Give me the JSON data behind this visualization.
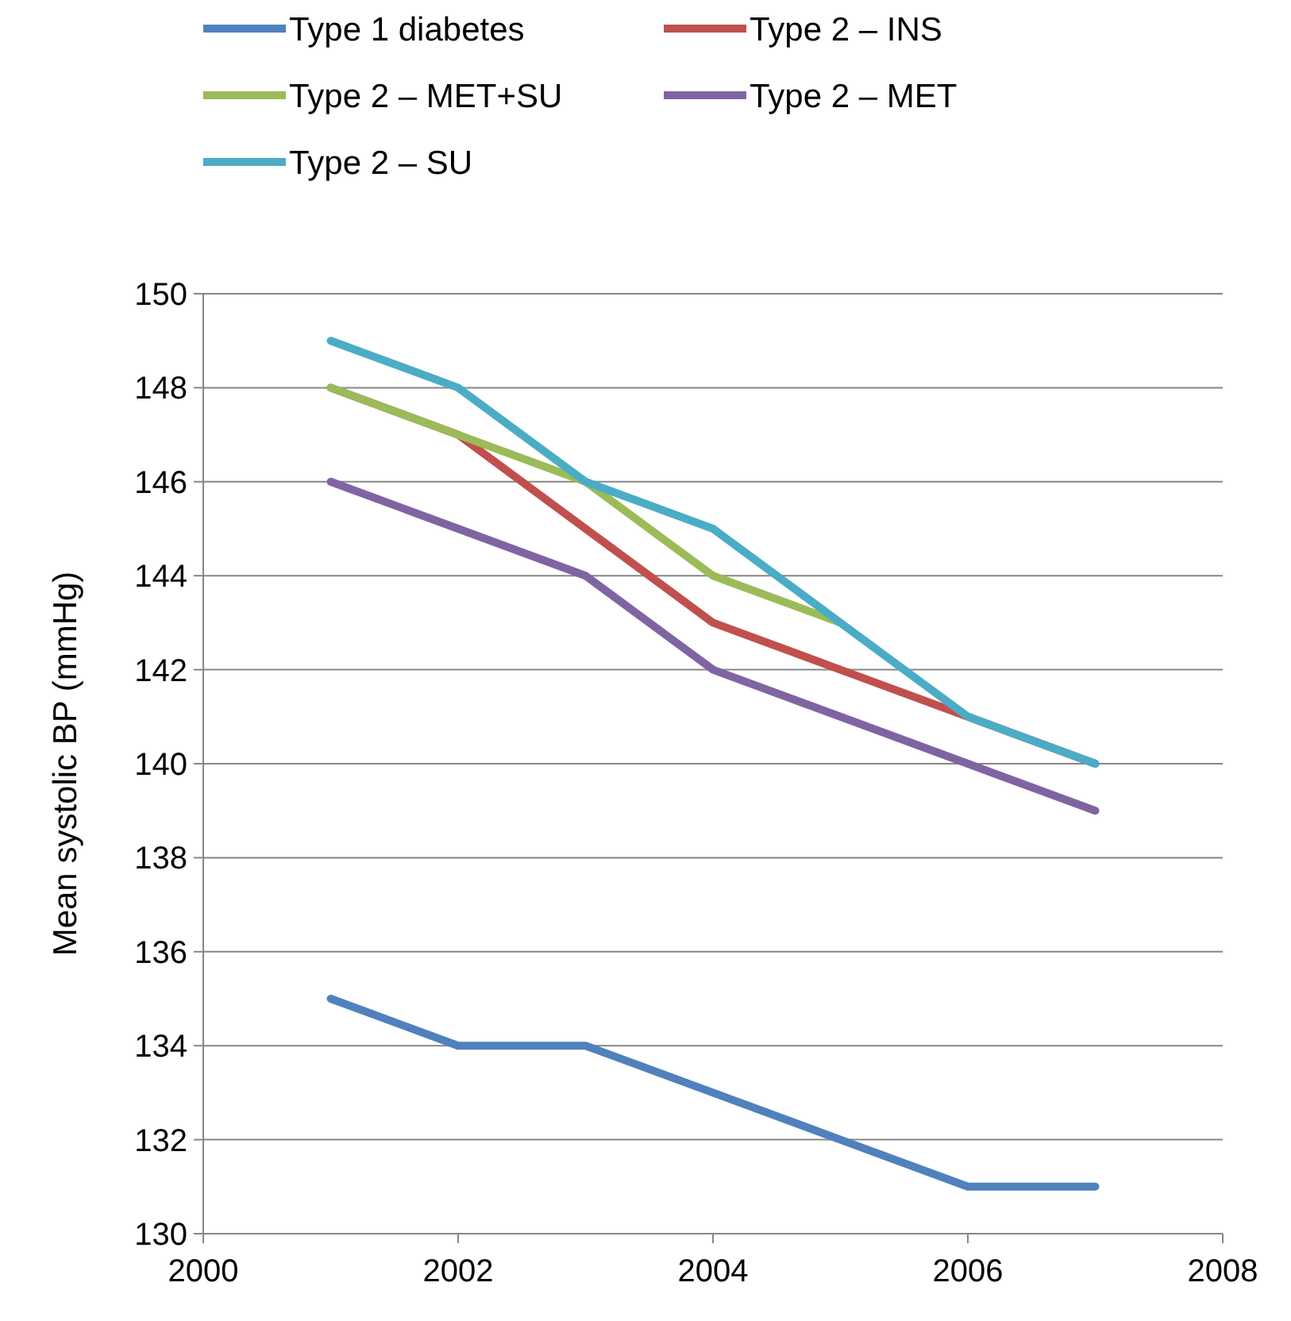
{
  "chart_data": {
    "type": "line",
    "ylabel": "Mean systolic BP (mmHg)",
    "x": [
      2001,
      2002,
      2003,
      2004,
      2005,
      2006,
      2007
    ],
    "series": [
      {
        "name": "Type 1 diabetes",
        "color": "#4f81bd",
        "values": [
          135,
          134,
          134,
          133,
          132,
          131,
          131
        ]
      },
      {
        "name": "Type 2 – INS",
        "color": "#c0504d",
        "values": [
          148,
          147,
          145,
          143,
          142,
          141,
          140
        ]
      },
      {
        "name": "Type 2 – MET+SU",
        "color": "#9bbb59",
        "values": [
          148,
          147,
          146,
          144,
          143,
          null,
          null
        ]
      },
      {
        "name": "Type 2 – MET",
        "color": "#8064a2",
        "values": [
          146,
          145,
          144,
          142,
          141,
          140,
          139
        ]
      },
      {
        "name": "Type 2 – SU",
        "color": "#4bacc6",
        "values": [
          149,
          148,
          146,
          145,
          143,
          141,
          140
        ]
      }
    ],
    "xlim": [
      2000,
      2008
    ],
    "xticks": [
      2000,
      2002,
      2004,
      2006,
      2008
    ],
    "ylim": [
      130,
      150
    ],
    "yticks": [
      130,
      132,
      134,
      136,
      138,
      140,
      142,
      144,
      146,
      148,
      150
    ],
    "grid": "y",
    "legend": "top",
    "marker": "none",
    "line_style": "solid"
  }
}
